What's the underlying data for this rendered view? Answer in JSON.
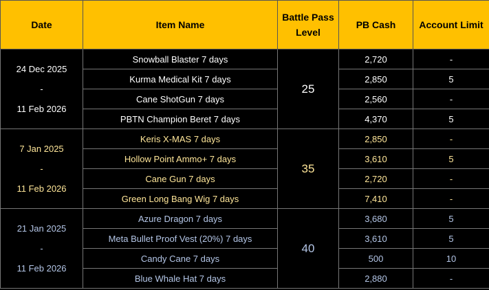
{
  "table": {
    "header": [
      "Date",
      "Item Name",
      "Battle Pass Level",
      "PB Cash",
      "Account Limit"
    ],
    "groups": [
      {
        "date_start": "24 Dec 2025",
        "date_sep": "-",
        "date_end": "11 Feb 2026",
        "level": "25",
        "color": "#ffffff",
        "rows": [
          [
            "Snowball Blaster 7 days",
            "2,720",
            "-"
          ],
          [
            "Kurma Medical Kit 7 days",
            "2,850",
            "5"
          ],
          [
            "Cane ShotGun 7 days",
            "2,560",
            "-"
          ],
          [
            "PBTN Champion Beret 7 days",
            "4,370",
            "5"
          ]
        ]
      },
      {
        "date_start": "7 Jan 2025",
        "date_sep": "-",
        "date_end": "11 Feb 2026",
        "level": "35",
        "color": "#ffe699",
        "rows": [
          [
            "Keris X-MAS 7 days",
            "2,850",
            "-"
          ],
          [
            "Hollow Point Ammo+ 7 days",
            "3,610",
            "5"
          ],
          [
            "Cane Gun 7 days",
            "2,720",
            "-"
          ],
          [
            "Green Long Bang Wig 7 days",
            "7,410",
            "-"
          ]
        ]
      },
      {
        "date_start": "21 Jan 2025",
        "date_sep": "-",
        "date_end": "11 Feb 2026",
        "level": "40",
        "color": "#b4c6e7",
        "rows": [
          [
            "Azure Dragon 7 days",
            "3,680",
            "5"
          ],
          [
            "Meta Bullet Proof Vest (20%) 7 days",
            "3,610",
            "5"
          ],
          [
            "Candy Cane 7 days",
            "500",
            "10"
          ],
          [
            "Blue Whale Hat 7 days",
            "2,880",
            "-"
          ]
        ]
      }
    ]
  }
}
